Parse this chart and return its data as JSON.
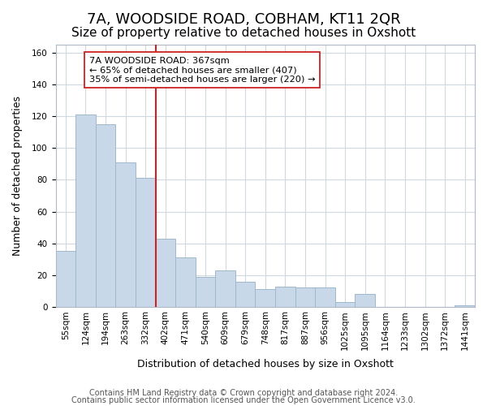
{
  "title": "7A, WOODSIDE ROAD, COBHAM, KT11 2QR",
  "subtitle": "Size of property relative to detached houses in Oxshott",
  "xlabel": "Distribution of detached houses by size in Oxshott",
  "ylabel": "Number of detached properties",
  "bar_labels": [
    "55sqm",
    "124sqm",
    "194sqm",
    "263sqm",
    "332sqm",
    "402sqm",
    "471sqm",
    "540sqm",
    "609sqm",
    "679sqm",
    "748sqm",
    "817sqm",
    "887sqm",
    "956sqm",
    "1025sqm",
    "1095sqm",
    "1164sqm",
    "1233sqm",
    "1302sqm",
    "1372sqm",
    "1441sqm"
  ],
  "bar_heights": [
    35,
    121,
    115,
    91,
    81,
    43,
    31,
    19,
    23,
    16,
    11,
    13,
    12,
    12,
    3,
    8,
    0,
    0,
    0,
    0,
    1
  ],
  "bar_color_normal": "#c8d8e8",
  "bar_edge_color": "#a0b8cc",
  "highlight_bar_index": 4,
  "vline_color": "#cc2222",
  "annotation_title": "7A WOODSIDE ROAD: 367sqm",
  "annotation_line1": "← 65% of detached houses are smaller (407)",
  "annotation_line2": "35% of semi-detached houses are larger (220) →",
  "ylim": [
    0,
    165
  ],
  "yticks": [
    0,
    20,
    40,
    60,
    80,
    100,
    120,
    140,
    160
  ],
  "footer1": "Contains HM Land Registry data © Crown copyright and database right 2024.",
  "footer2": "Contains public sector information licensed under the Open Government Licence v3.0.",
  "bg_color": "#ffffff",
  "grid_color": "#d0d8e0",
  "title_fontsize": 13,
  "subtitle_fontsize": 11,
  "axis_label_fontsize": 9,
  "tick_fontsize": 7.5,
  "footer_fontsize": 7
}
